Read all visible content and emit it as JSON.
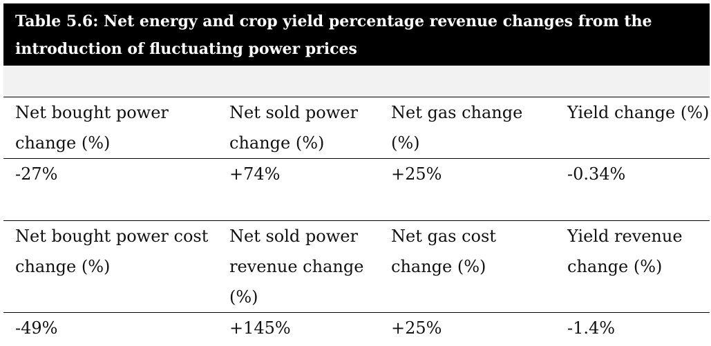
{
  "table": {
    "title": "Table 5.6: Net energy and crop yield percentage revenue changes from the introduction of fluctuating power prices",
    "rows": [
      [
        "Net bought power change (%)",
        "Net sold power change (%)",
        "Net gas change (%)",
        "Yield change (%)"
      ],
      [
        "-27%",
        "+74%",
        "+25%",
        "-0.34%"
      ],
      [
        "Net bought power cost change (%)",
        "Net sold power revenue change (%)",
        "Net gas cost change (%)",
        "Yield revenue change (%)"
      ],
      [
        "-49%",
        "+145%",
        "+25%",
        "-1.4%"
      ]
    ]
  }
}
